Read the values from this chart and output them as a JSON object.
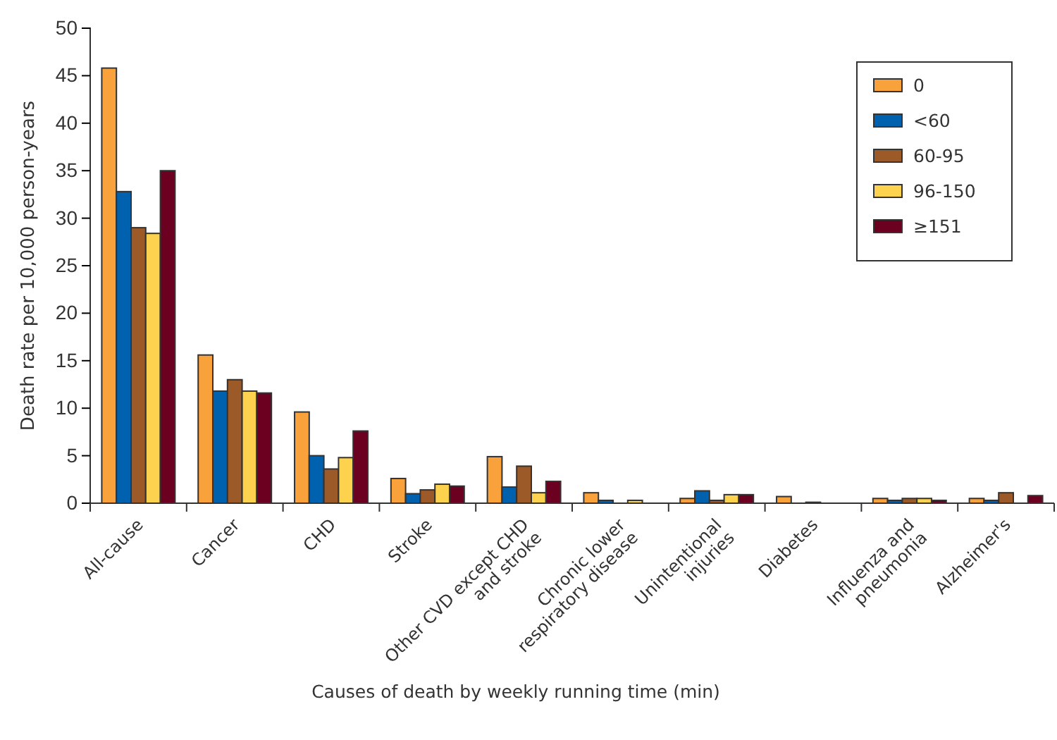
{
  "chart_data": {
    "type": "bar",
    "xlabel": "Causes of death by weekly running time (min)",
    "ylabel": "Death rate per 10,000 person-years",
    "categories": [
      "All-cause",
      "Cancer",
      "CHD",
      "Stroke",
      "Other CVD except CHD\nand stroke",
      "Chronic lower\nrespiratory disease",
      "Unintentional\ninjuries",
      "Diabetes",
      "Influenza and\npneumonia",
      "Alzheimer's"
    ],
    "series": [
      {
        "name": "0",
        "color": "#f9a13a",
        "values": [
          45.8,
          15.6,
          9.6,
          2.6,
          4.9,
          1.1,
          0.5,
          0.7,
          0.5,
          0.5
        ]
      },
      {
        "name": "<60",
        "color": "#0061ae",
        "values": [
          32.8,
          11.8,
          5,
          1,
          1.7,
          0.3,
          1.3,
          0,
          0.3,
          0.3
        ]
      },
      {
        "name": "60-95",
        "color": "#9b5a28",
        "values": [
          29,
          13,
          3.6,
          1.4,
          3.9,
          0,
          0.3,
          0.1,
          0.5,
          1.1
        ]
      },
      {
        "name": "96-150",
        "color": "#fdd24f",
        "values": [
          28.4,
          11.8,
          4.8,
          2,
          1.1,
          0.3,
          0.9,
          0,
          0.5,
          0
        ]
      },
      {
        "name": "≥151",
        "color": "#6b0020",
        "values": [
          35,
          11.6,
          7.6,
          1.8,
          2.3,
          0,
          0.9,
          0,
          0.3,
          0.8
        ]
      }
    ],
    "ylim": [
      0,
      50
    ],
    "yticks": [
      0,
      5,
      10,
      15,
      20,
      25,
      30,
      35,
      40,
      45,
      50
    ],
    "grid": false,
    "legend": "top right"
  }
}
